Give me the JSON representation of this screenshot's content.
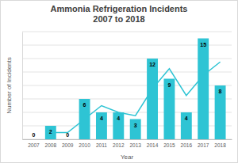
{
  "chart_data": {
    "type": "bar",
    "title": "Ammonia Refrigeration Incidents\n2007 to 2018",
    "x_label": "Year",
    "y_label": "Number of Incidents",
    "categories": [
      "2007",
      "2008",
      "2009",
      "2010",
      "2011",
      "2012",
      "2013",
      "2014",
      "2015",
      "2016",
      "2017",
      "2018"
    ],
    "series": [
      {
        "type": "bar",
        "color": "#2ec4d4",
        "data_labels": true,
        "values": [
          0,
          2,
          0,
          6,
          4,
          4,
          3,
          12,
          9,
          4,
          15,
          8
        ]
      },
      {
        "type": "line",
        "color": "#2ec4d4",
        "values": [
          null,
          1,
          1,
          3,
          5,
          4,
          3.5,
          7.5,
          10.5,
          6.5,
          9.5,
          11.5
        ]
      }
    ],
    "ylim": [
      0,
      16
    ],
    "yticks": [
      0,
      2,
      4,
      6,
      8,
      10,
      12,
      14,
      16
    ],
    "grid": true,
    "tick_labels": "x"
  }
}
